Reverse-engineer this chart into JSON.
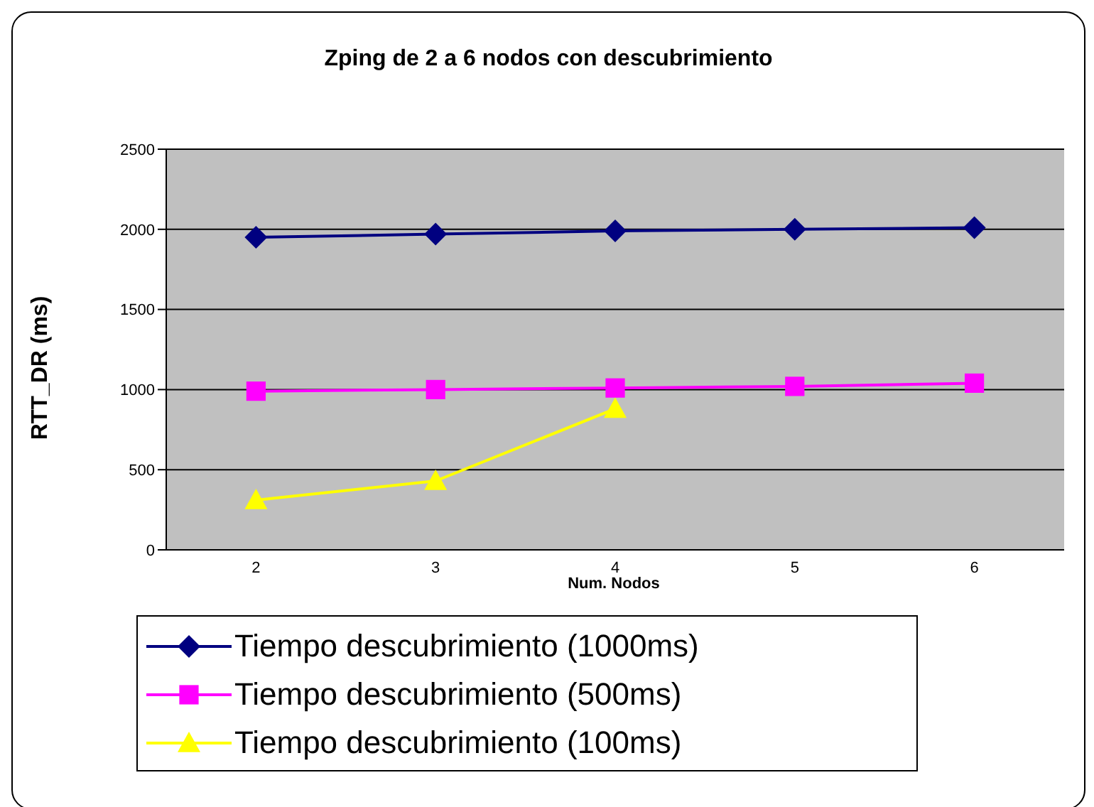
{
  "chart_data": {
    "type": "line",
    "title": "Zping de 2 a 6 nodos con descubrimiento",
    "xlabel": "Num. Nodos",
    "ylabel": "RTT_DR (ms)",
    "categories": [
      "2",
      "3",
      "4",
      "5",
      "6"
    ],
    "series": [
      {
        "name": "Tiempo descubrimiento (1000ms)",
        "color": "#000080",
        "marker": "diamond",
        "values": [
          1950,
          1970,
          1990,
          2000,
          2010
        ]
      },
      {
        "name": "Tiempo descubrimiento (500ms)",
        "color": "#ff00ff",
        "marker": "square",
        "values": [
          990,
          1000,
          1010,
          1020,
          1040
        ]
      },
      {
        "name": "Tiempo descubrimiento (100ms)",
        "color": "#ffff00",
        "marker": "triangle",
        "values": [
          310,
          430,
          880,
          null,
          null
        ]
      }
    ],
    "ylim": [
      0,
      2500
    ],
    "yticks": [
      0,
      500,
      1000,
      1500,
      2000,
      2500
    ],
    "grid": "y",
    "legend": "bottom"
  }
}
